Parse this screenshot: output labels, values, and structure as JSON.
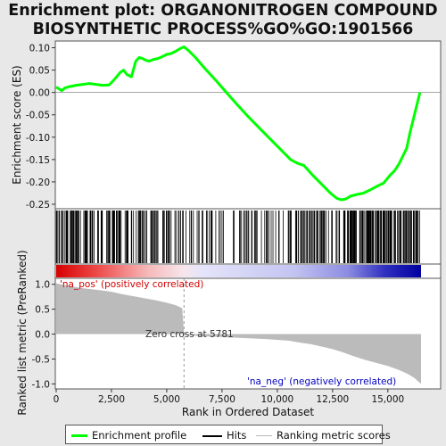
{
  "title_lines": [
    "Enrichment plot: ORGANONITROGEN COMPOUND",
    "BIOSYNTHETIC PROCESS%GO%GO:1901566"
  ],
  "ylabel_top": "Enrichment score (ES)",
  "ylabel_bottom": "Ranked list metric (PreRanked)",
  "xlabel": "Rank in Ordered Dataset",
  "zero_cross_text": "Zero cross at 5781",
  "pos_label": "'na_pos' (positively correlated)",
  "neg_label": "'na_neg' (negatively correlated)",
  "legend": {
    "enrichment": "Enrichment profile",
    "hits": "Hits",
    "ranking": "Ranking metric scores"
  },
  "colors": {
    "enrichment": "#00ff00",
    "pos_label": "#d00000",
    "neg_label": "#0000c0",
    "bar_fill": "#bbbbbb"
  },
  "chart_data": {
    "type": "line",
    "xlim": [
      0,
      16500
    ],
    "x_ticks": [
      0,
      2500,
      5000,
      7500,
      10000,
      12500,
      15000
    ],
    "x_tick_labels": [
      "0",
      "2,500",
      "5,000",
      "7,500",
      "10,000",
      "12,500",
      "15,000"
    ],
    "es_ylim": [
      -0.26,
      0.115
    ],
    "es_ticks": [
      0.1,
      0.05,
      0.0,
      -0.05,
      -0.1,
      -0.15,
      -0.2,
      -0.25
    ],
    "es_tick_labels": [
      "0.10",
      "0.05",
      "0.00",
      "-0.05",
      "-0.10",
      "-0.15",
      "-0.20",
      "-0.25"
    ],
    "metric_ylim": [
      -1.1,
      1.12
    ],
    "metric_ticks": [
      1.0,
      0.5,
      0.0,
      -0.5,
      -1.0
    ],
    "metric_tick_labels": [
      "1.0",
      "0.5",
      "0.0",
      "-0.5",
      "-1.0"
    ],
    "zero_cross": 5781,
    "n_genes": 16500,
    "es_curve": {
      "x": [
        0,
        250,
        400,
        600,
        900,
        1200,
        1500,
        1800,
        2100,
        2400,
        2650,
        2900,
        3050,
        3200,
        3400,
        3600,
        3750,
        3900,
        4050,
        4200,
        4400,
        4600,
        4800,
        5000,
        5200,
        5400,
        5600,
        5781,
        6000,
        6300,
        6700,
        7200,
        7700,
        8200,
        8700,
        9200,
        9700,
        10200,
        10600,
        10900,
        11200,
        11600,
        12000,
        12400,
        12700,
        12900,
        13100,
        13300,
        13600,
        13900,
        14200,
        14500,
        14800,
        15100,
        15300,
        15500,
        15700,
        15850,
        16000,
        16200,
        16350,
        16450
      ],
      "y": [
        0.012,
        0.004,
        0.01,
        0.013,
        0.016,
        0.018,
        0.02,
        0.018,
        0.016,
        0.017,
        0.03,
        0.045,
        0.05,
        0.04,
        0.035,
        0.07,
        0.078,
        0.076,
        0.072,
        0.07,
        0.074,
        0.076,
        0.08,
        0.085,
        0.087,
        0.092,
        0.098,
        0.102,
        0.093,
        0.078,
        0.055,
        0.028,
        0.0,
        -0.028,
        -0.055,
        -0.08,
        -0.105,
        -0.13,
        -0.15,
        -0.158,
        -0.163,
        -0.185,
        -0.205,
        -0.225,
        -0.237,
        -0.24,
        -0.238,
        -0.232,
        -0.228,
        -0.225,
        -0.218,
        -0.21,
        -0.203,
        -0.185,
        -0.175,
        -0.16,
        -0.14,
        -0.125,
        -0.09,
        -0.05,
        -0.02,
        0.0
      ]
    },
    "metric_curve": {
      "x": [
        0,
        400,
        800,
        1200,
        1600,
        2000,
        2500,
        3000,
        3500,
        4000,
        4500,
        5000,
        5400,
        5700,
        5781,
        5800,
        7000,
        8500,
        9500,
        10500,
        11000,
        11500,
        12000,
        12500,
        13000,
        13500,
        14000,
        14500,
        15000,
        15500,
        15900,
        16200,
        16400,
        16500
      ],
      "y": [
        1.02,
        0.98,
        0.95,
        0.92,
        0.9,
        0.88,
        0.85,
        0.8,
        0.76,
        0.72,
        0.68,
        0.63,
        0.58,
        0.52,
        0.0,
        -0.02,
        -0.05,
        -0.08,
        -0.1,
        -0.13,
        -0.17,
        -0.2,
        -0.25,
        -0.3,
        -0.37,
        -0.45,
        -0.52,
        -0.58,
        -0.64,
        -0.72,
        -0.8,
        -0.88,
        -0.96,
        -1.0
      ]
    }
  }
}
